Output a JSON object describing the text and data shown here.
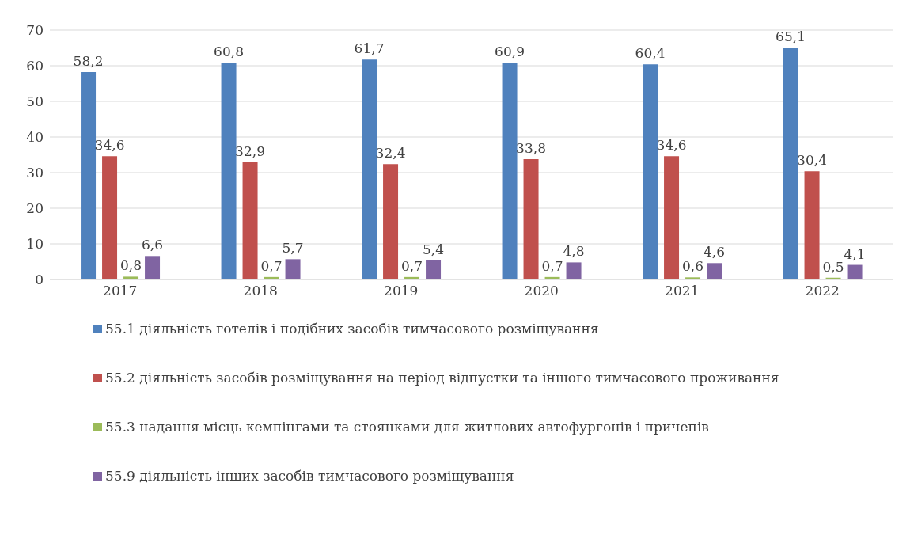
{
  "chart_data": {
    "type": "bar",
    "categories": [
      "2017",
      "2018",
      "2019",
      "2020",
      "2021",
      "2022"
    ],
    "series": [
      {
        "name": "55.1 діяльність готелів і подібних засобів тимчасового розміщування",
        "color": "#4f81bd",
        "values": [
          58.2,
          60.8,
          61.7,
          60.9,
          60.4,
          65.1
        ],
        "value_labels": [
          "58,2",
          "60,8",
          "61,7",
          "60,9",
          "60,4",
          "65,1"
        ]
      },
      {
        "name": "55.2 діяльність засобів розміщування на період відпустки та іншого тимчасового проживання",
        "color": "#c0504d",
        "values": [
          34.6,
          32.9,
          32.4,
          33.8,
          34.6,
          30.4
        ],
        "value_labels": [
          "34,6",
          "32,9",
          "32,4",
          "33,8",
          "34,6",
          "30,4"
        ]
      },
      {
        "name": "55.3 надання місць кемпінгами та стоянками для житлових автофургонів і причепів",
        "color": "#9bbb59",
        "values": [
          0.8,
          0.7,
          0.7,
          0.7,
          0.6,
          0.5
        ],
        "value_labels": [
          "0,8",
          "0,7",
          "0,7",
          "0,7",
          "0,6",
          "0,5"
        ]
      },
      {
        "name": "55.9 діяльність інших засобів тимчасового розміщування",
        "color": "#8064a2",
        "values": [
          6.6,
          5.7,
          5.4,
          4.8,
          4.6,
          4.1
        ],
        "value_labels": [
          "6,6",
          "5,7",
          "5,4",
          "4,8",
          "4,6",
          "4,1"
        ]
      }
    ],
    "ylim": [
      0,
      70
    ],
    "yticks": [
      0,
      10,
      20,
      30,
      40,
      50,
      60,
      70
    ],
    "grid": "y",
    "legend": "bottom"
  }
}
